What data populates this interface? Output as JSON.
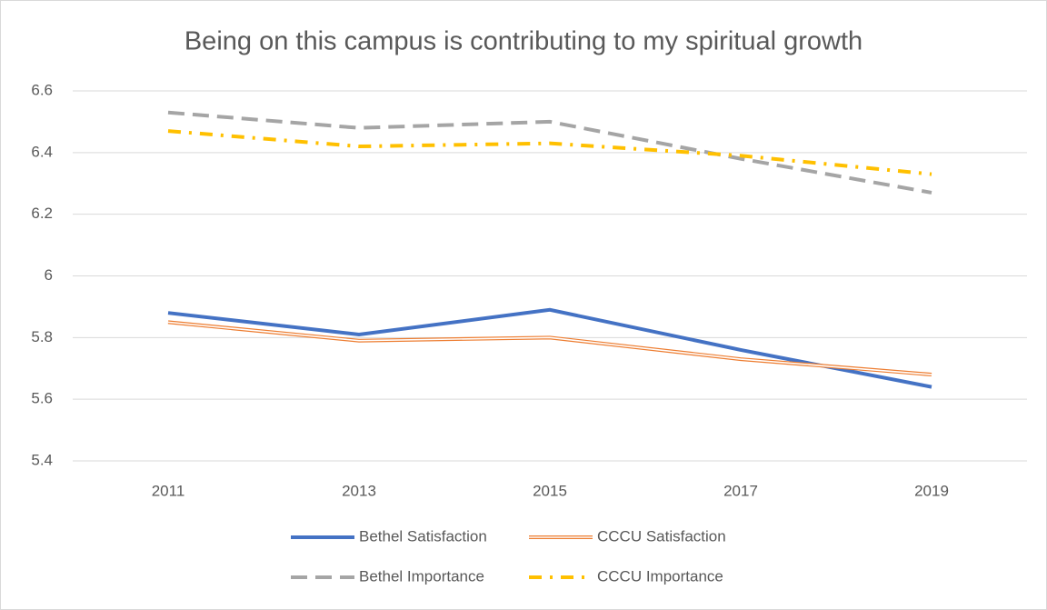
{
  "chart_data": {
    "type": "line",
    "title": "Being on this campus is contributing to my spiritual growth",
    "categories": [
      "2011",
      "2013",
      "2015",
      "2017",
      "2019"
    ],
    "series": [
      {
        "name": "Bethel Satisfaction",
        "color": "#4472c4",
        "values": [
          5.88,
          5.81,
          5.89,
          5.76,
          5.64
        ]
      },
      {
        "name": "CCCU Satisfaction",
        "color": "#ed7d31",
        "values": [
          5.85,
          5.79,
          5.8,
          5.73,
          5.68
        ]
      },
      {
        "name": "Bethel Importance",
        "color": "#a5a5a5",
        "values": [
          6.53,
          6.48,
          6.5,
          6.38,
          6.27
        ]
      },
      {
        "name": "CCCU Importance",
        "color": "#ffc000",
        "values": [
          6.47,
          6.42,
          6.43,
          6.39,
          6.33
        ]
      }
    ],
    "ylim": [
      5.4,
      6.6
    ],
    "yticks": [
      5.4,
      5.6,
      5.8,
      6,
      6.2,
      6.4,
      6.6
    ],
    "grid": true,
    "legend": "bottom"
  }
}
